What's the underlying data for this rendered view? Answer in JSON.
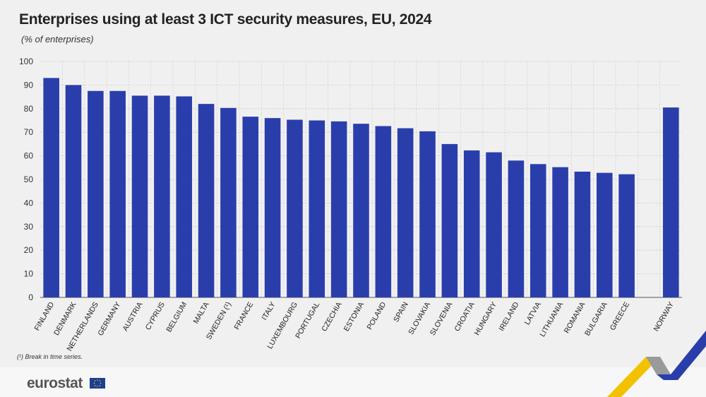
{
  "title": "Enterprises using at least 3 ICT security measures, EU, 2024",
  "subtitle": "(% of enterprises)",
  "footnote": "(¹) Break in time series.",
  "logo_text": "eurostat",
  "colors": {
    "bar": "#2a3eab",
    "grid": "#c8c8c8",
    "text": "#222222"
  },
  "chart_data": {
    "type": "bar",
    "title": "Enterprises using at least 3 ICT security measures, EU, 2024",
    "ylabel": "% of enterprises",
    "ylim": [
      0,
      100
    ],
    "yticks": [
      0,
      10,
      20,
      30,
      40,
      50,
      60,
      70,
      80,
      90,
      100
    ],
    "grid": true,
    "categories": [
      "FINLAND",
      "DENMARK",
      "NETHERLANDS",
      "GERMANY",
      "AUSTRIA",
      "CYPRUS",
      "BELGIUM",
      "MALTA",
      "SWEDEN (¹)",
      "FRANCE",
      "ITALY",
      "LUXEMBOURG",
      "PORTUGAL",
      "CZECHIA",
      "ESTONIA",
      "POLAND",
      "SPAIN",
      "SLOVAKIA",
      "SLOVENIA",
      "CROATIA",
      "HUNGARY",
      "IRELAND",
      "LATVIA",
      "LITHUANIA",
      "ROMANIA",
      "BULGARIA",
      "GREECE",
      "",
      "NORWAY"
    ],
    "values": [
      93.0,
      90.0,
      87.5,
      87.5,
      85.5,
      85.5,
      85.2,
      82.0,
      80.3,
      76.6,
      76.0,
      75.3,
      75.0,
      74.6,
      73.6,
      72.6,
      71.7,
      70.4,
      65.0,
      62.3,
      61.5,
      58.0,
      56.5,
      55.2,
      53.3,
      52.8,
      52.2,
      null,
      80.5
    ]
  }
}
